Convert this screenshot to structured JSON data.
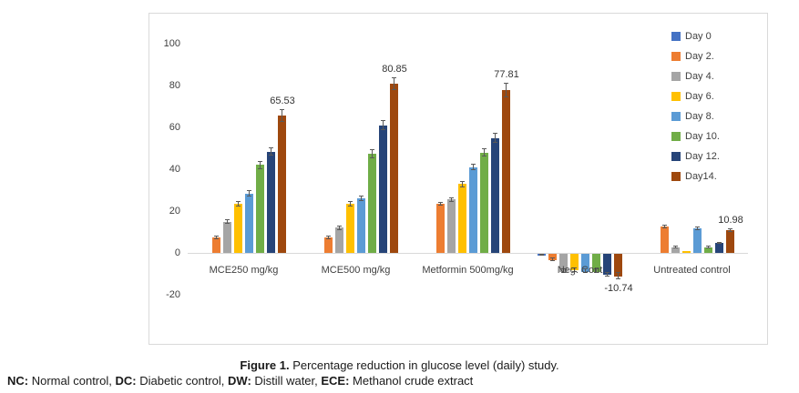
{
  "chart_data": {
    "type": "bar",
    "title": "",
    "categories": [
      "MCE250 mg/kg",
      "MCE500 mg/kg",
      "Metformin 500mg/kg",
      "Neg. Cont",
      "Untreated control"
    ],
    "series": [
      {
        "name": "Day 0",
        "color": "#4472c4",
        "values": [
          0,
          0,
          0,
          -0.7,
          0
        ],
        "errors": [
          0,
          0,
          0,
          0.4,
          0
        ]
      },
      {
        "name": "Day 2.",
        "color": "#ed7d31",
        "values": [
          7.5,
          7.5,
          23.5,
          -3,
          12.5
        ],
        "errors": [
          0.8,
          0.8,
          1,
          0.8,
          0.8
        ]
      },
      {
        "name": "Day 4.",
        "color": "#a5a5a5",
        "values": [
          15,
          12,
          25.5,
          -8.5,
          2.8
        ],
        "errors": [
          1,
          1,
          1.2,
          1,
          0.6
        ]
      },
      {
        "name": "Day 6.",
        "color": "#ffc000",
        "values": [
          23.5,
          23.5,
          33,
          -8,
          0.7
        ],
        "errors": [
          1.2,
          1.5,
          1.5,
          1,
          0
        ]
      },
      {
        "name": "Day 8.",
        "color": "#5b9bd5",
        "values": [
          28.3,
          26,
          41,
          -8.5,
          11.6
        ],
        "errors": [
          1.5,
          1.2,
          1.5,
          1,
          0.8
        ]
      },
      {
        "name": "Day 10.",
        "color": "#70ad47",
        "values": [
          42,
          47.5,
          48,
          -8.5,
          2.8
        ],
        "errors": [
          2,
          2.2,
          1.8,
          1,
          0.6
        ]
      },
      {
        "name": "Day 12.",
        "color": "#264478",
        "values": [
          48.3,
          61,
          55,
          -10.2,
          4.8
        ],
        "errors": [
          2,
          2.5,
          2.2,
          1,
          0.6
        ]
      },
      {
        "name": "Day14.",
        "color": "#9e480e",
        "values": [
          65.53,
          80.85,
          77.81,
          -10.74,
          10.98
        ],
        "errors": [
          3,
          3,
          3.5,
          1.8,
          0.8
        ],
        "labels": [
          "65.53",
          "80.85",
          "77.81",
          "-10.74",
          "10.98"
        ]
      }
    ],
    "y_ticks": [
      100,
      80,
      60,
      40,
      20,
      0,
      -20
    ],
    "ylim": [
      -20,
      100
    ],
    "grid": false,
    "legend_position": "inside-top-right",
    "axis_color": "#d9d9d9",
    "error_bar_color": "#595959",
    "xlabel": "",
    "ylabel": ""
  },
  "caption": {
    "figure_label": "Figure 1.",
    "figure_text": " Percentage reduction in glucose level (daily) study.",
    "abbrevs": [
      {
        "k": "NC:",
        "v": " Normal control, "
      },
      {
        "k": "DC:",
        "v": " Diabetic control, "
      },
      {
        "k": "DW:",
        "v": " Distill water, "
      },
      {
        "k": "ECE:",
        "v": " Methanol crude extract"
      }
    ]
  }
}
